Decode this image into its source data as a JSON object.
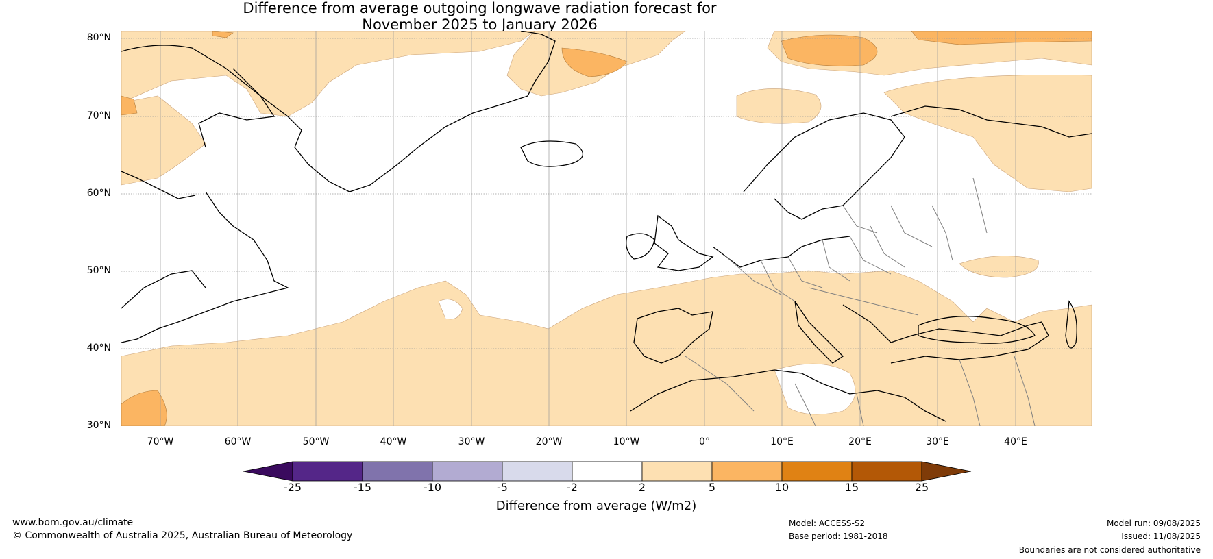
{
  "title": {
    "line1": "Difference from average outgoing longwave radiation forecast for",
    "line2": "November 2025 to January 2026"
  },
  "map": {
    "lat_labels": [
      "80°N",
      "70°N",
      "60°N",
      "50°N",
      "40°N",
      "30°N"
    ],
    "lon_labels": [
      "70°W",
      "60°W",
      "50°W",
      "40°W",
      "30°W",
      "20°W",
      "10°W",
      "0°",
      "10°E",
      "20°E",
      "30°E",
      "40°E"
    ],
    "extent": {
      "lon": [
        -75,
        50
      ],
      "lat": [
        30,
        81
      ]
    },
    "gridlines": true,
    "colors": {
      "pale_orange": "#fde0b2",
      "orange": "#fbb562",
      "coast": "#000000",
      "border": "#808080"
    }
  },
  "colorbar": {
    "ticks": [
      "-25",
      "-15",
      "-10",
      "-5",
      "-2",
      "2",
      "5",
      "10",
      "15",
      "25"
    ],
    "colors": [
      "#3a0a5e",
      "#542688",
      "#8073ac",
      "#b2abd2",
      "#d8daeb",
      "#ffffff",
      "#fde0b2",
      "#fbb562",
      "#e08214",
      "#b35806",
      "#7f3b08"
    ],
    "label": "Difference from average (W/m2)"
  },
  "footer": {
    "website": "www.bom.gov.au/climate",
    "copyright": "© Commonwealth of Australia 2025, Australian Bureau of Meteorology",
    "model": "Model: ACCESS-S2",
    "base_period": "Base period: 1981-2018",
    "model_run": "Model run: 09/08/2025",
    "issued": "Issued: 11/08/2025",
    "disclaimer": "Boundaries are not considered authoritative"
  }
}
